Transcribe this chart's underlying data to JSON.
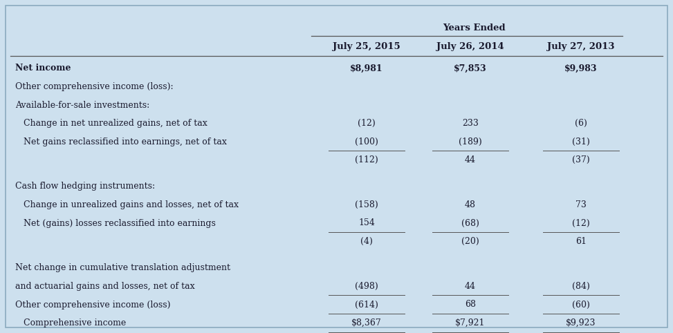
{
  "bg_color": "#cde0ee",
  "header_years_ended": "Years Ended",
  "col_headers": [
    "July 25, 2015",
    "July 26, 2014",
    "July 27, 2013"
  ],
  "rows": [
    {
      "label": "Net income",
      "indent": 0,
      "bold": true,
      "values": [
        "$8,981",
        "$7,853",
        "$9,983"
      ],
      "bold_values": true,
      "underline_below": false,
      "double_underline": false,
      "space_after": false
    },
    {
      "label": "Other comprehensive income (loss):",
      "indent": 0,
      "bold": false,
      "values": [
        "",
        "",
        ""
      ],
      "bold_values": false,
      "underline_below": false,
      "double_underline": false,
      "space_after": false
    },
    {
      "label": "Available-for-sale investments:",
      "indent": 0,
      "bold": false,
      "values": [
        "",
        "",
        ""
      ],
      "bold_values": false,
      "underline_below": false,
      "double_underline": false,
      "space_after": false
    },
    {
      "label": "   Change in net unrealized gains, net of tax",
      "indent": 0,
      "bold": false,
      "values": [
        "(12)",
        "233",
        "(6)"
      ],
      "bold_values": false,
      "underline_below": false,
      "double_underline": false,
      "space_after": false
    },
    {
      "label": "   Net gains reclassified into earnings, net of tax",
      "indent": 0,
      "bold": false,
      "values": [
        "(100)",
        "(189)",
        "(31)"
      ],
      "bold_values": false,
      "underline_below": true,
      "double_underline": false,
      "space_after": false
    },
    {
      "label": "",
      "indent": 0,
      "bold": false,
      "values": [
        "(112)",
        "44",
        "(37)"
      ],
      "bold_values": false,
      "underline_below": false,
      "double_underline": false,
      "space_after": true
    },
    {
      "label": "Cash flow hedging instruments:",
      "indent": 0,
      "bold": false,
      "values": [
        "",
        "",
        ""
      ],
      "bold_values": false,
      "underline_below": false,
      "double_underline": false,
      "space_after": false
    },
    {
      "label": "   Change in unrealized gains and losses, net of tax",
      "indent": 0,
      "bold": false,
      "values": [
        "(158)",
        "48",
        "73"
      ],
      "bold_values": false,
      "underline_below": false,
      "double_underline": false,
      "space_after": false
    },
    {
      "label": "   Net (gains) losses reclassified into earnings",
      "indent": 0,
      "bold": false,
      "values": [
        "154",
        "(68)",
        "(12)"
      ],
      "bold_values": false,
      "underline_below": true,
      "double_underline": false,
      "space_after": false
    },
    {
      "label": "",
      "indent": 0,
      "bold": false,
      "values": [
        "(4)",
        "(20)",
        "61"
      ],
      "bold_values": false,
      "underline_below": false,
      "double_underline": false,
      "space_after": true
    },
    {
      "label": "Net change in cumulative translation adjustment",
      "indent": 0,
      "bold": false,
      "values": [
        "",
        "",
        ""
      ],
      "bold_values": false,
      "underline_below": false,
      "double_underline": false,
      "space_after": false
    },
    {
      "label": "and actuarial gains and losses, net of tax",
      "indent": 0,
      "bold": false,
      "values": [
        "(498)",
        "44",
        "(84)"
      ],
      "bold_values": false,
      "underline_below": true,
      "double_underline": false,
      "space_after": false
    },
    {
      "label": "Other comprehensive income (loss)",
      "indent": 0,
      "bold": false,
      "values": [
        "(614)",
        "68",
        "(60)"
      ],
      "bold_values": false,
      "underline_below": true,
      "double_underline": false,
      "space_after": false
    },
    {
      "label": "   Comprehensive income",
      "indent": 0,
      "bold": false,
      "values": [
        "$8,367",
        "$7,921",
        "$9,923"
      ],
      "bold_values": false,
      "underline_below": false,
      "double_underline": true,
      "space_after": false
    }
  ],
  "font_size": 9.0,
  "header_font_size": 9.5,
  "text_color": "#1a1a2e",
  "line_color": "#555555"
}
